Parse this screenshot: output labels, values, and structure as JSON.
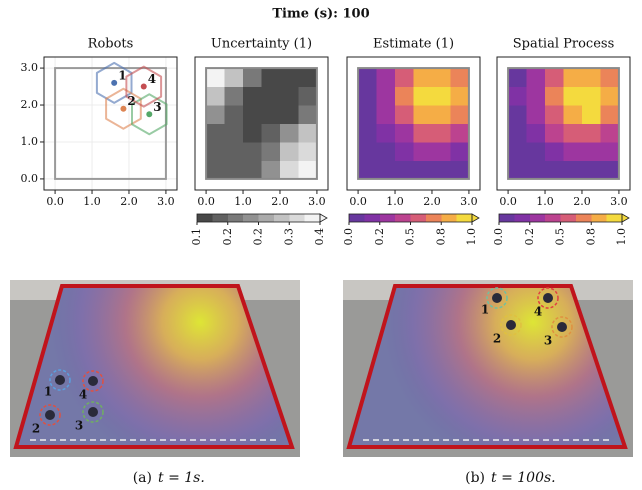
{
  "title": "Time (s): 100",
  "chart_data": [
    {
      "type": "scatter",
      "title": "Robots",
      "x": [
        1.6,
        1.85,
        2.55,
        2.4
      ],
      "y": [
        2.6,
        1.9,
        1.75,
        2.5
      ],
      "point_labels": [
        "1",
        "2",
        "3",
        "4"
      ],
      "colors": [
        "#4c72b0",
        "#dd8452",
        "#55a868",
        "#c44e52"
      ],
      "domain": [
        0,
        3
      ],
      "xlim": [
        -0.3,
        3.3
      ],
      "ylim": [
        -0.3,
        3.3
      ],
      "xticks": [
        {
          "value": 0,
          "label": "0.0"
        },
        {
          "value": 1,
          "label": "1.0"
        },
        {
          "value": 2,
          "label": "2.0"
        },
        {
          "value": 3,
          "label": "3.0"
        }
      ],
      "yticks": [
        {
          "value": 0,
          "label": "0.0"
        },
        {
          "value": 1,
          "label": "1.0"
        },
        {
          "value": 2,
          "label": "2.0"
        },
        {
          "value": 3,
          "label": "3.0"
        }
      ],
      "grid": true
    },
    {
      "type": "heatmap",
      "title": "Uncertainty (1)",
      "colormap": "gray",
      "x": [
        0.25,
        0.75,
        1.25,
        1.75,
        2.25,
        2.75
      ],
      "y": [
        0.25,
        0.75,
        1.25,
        1.75,
        2.25,
        2.75
      ],
      "values": [
        [
          0.15,
          0.15,
          0.17,
          0.25,
          0.33,
          0.38
        ],
        [
          0.15,
          0.14,
          0.14,
          0.2,
          0.3,
          0.36
        ],
        [
          0.17,
          0.14,
          0.13,
          0.14,
          0.22,
          0.3
        ],
        [
          0.22,
          0.15,
          0.13,
          0.12,
          0.13,
          0.2
        ],
        [
          0.3,
          0.2,
          0.13,
          0.12,
          0.12,
          0.14
        ],
        [
          0.38,
          0.3,
          0.18,
          0.13,
          0.12,
          0.13
        ]
      ],
      "xlim": [
        -0.3,
        3.3
      ],
      "ylim": [
        -0.3,
        3.3
      ],
      "xticks": [
        {
          "value": 0,
          "label": "0.0"
        },
        {
          "value": 1,
          "label": "1.0"
        },
        {
          "value": 2,
          "label": "2.0"
        },
        {
          "value": 3,
          "label": "3.0"
        }
      ],
      "clim": [
        0.1,
        0.4
      ],
      "cticks": [
        {
          "value": 0.1,
          "label": "0.1"
        },
        {
          "value": 0.175,
          "label": "0.2"
        },
        {
          "value": 0.25,
          "label": "0.2"
        },
        {
          "value": 0.325,
          "label": "0.3"
        },
        {
          "value": 0.4,
          "label": "0.4"
        }
      ]
    },
    {
      "type": "heatmap",
      "title": "Estimate (1)",
      "colormap": "plasma",
      "x": [
        0.25,
        0.75,
        1.25,
        1.75,
        2.25,
        2.75
      ],
      "y": [
        0.25,
        0.75,
        1.25,
        1.75,
        2.25,
        2.75
      ],
      "values": [
        [
          0.01,
          0.03,
          0.06,
          0.09,
          0.09,
          0.07
        ],
        [
          0.03,
          0.09,
          0.18,
          0.25,
          0.27,
          0.21
        ],
        [
          0.07,
          0.19,
          0.37,
          0.53,
          0.57,
          0.44
        ],
        [
          0.11,
          0.29,
          0.57,
          0.82,
          0.87,
          0.68
        ],
        [
          0.12,
          0.33,
          0.64,
          0.93,
          0.99,
          0.77
        ],
        [
          0.1,
          0.27,
          0.53,
          0.77,
          0.82,
          0.64
        ]
      ],
      "xlim": [
        -0.3,
        3.3
      ],
      "ylim": [
        -0.3,
        3.3
      ],
      "xticks": [
        {
          "value": 0,
          "label": "0.0"
        },
        {
          "value": 1,
          "label": "1.0"
        },
        {
          "value": 2,
          "label": "2.0"
        },
        {
          "value": 3,
          "label": "3.0"
        }
      ],
      "clim": [
        0,
        1
      ],
      "cticks": [
        {
          "value": 0,
          "label": "0.0"
        },
        {
          "value": 0.25,
          "label": "0.2"
        },
        {
          "value": 0.5,
          "label": "0.5"
        },
        {
          "value": 0.75,
          "label": "0.8"
        },
        {
          "value": 1,
          "label": "1.0"
        }
      ]
    },
    {
      "type": "heatmap",
      "title": "Spatial Process",
      "colormap": "plasma",
      "x": [
        0.25,
        0.75,
        1.25,
        1.75,
        2.25,
        2.75
      ],
      "y": [
        0.25,
        0.75,
        1.25,
        1.75,
        2.25,
        2.75
      ],
      "values": [
        [
          0.02,
          0.05,
          0.09,
          0.12,
          0.12,
          0.1
        ],
        [
          0.05,
          0.12,
          0.22,
          0.3,
          0.31,
          0.25
        ],
        [
          0.09,
          0.22,
          0.4,
          0.56,
          0.6,
          0.48
        ],
        [
          0.12,
          0.3,
          0.58,
          0.83,
          0.88,
          0.7
        ],
        [
          0.13,
          0.33,
          0.64,
          0.93,
          0.99,
          0.78
        ],
        [
          0.11,
          0.28,
          0.54,
          0.78,
          0.83,
          0.66
        ]
      ],
      "xlim": [
        -0.3,
        3.3
      ],
      "ylim": [
        -0.3,
        3.3
      ],
      "xticks": [
        {
          "value": 0,
          "label": "0.0"
        },
        {
          "value": 1,
          "label": "1.0"
        },
        {
          "value": 2,
          "label": "2.0"
        },
        {
          "value": 3,
          "label": "3.0"
        }
      ],
      "clim": [
        0,
        1
      ],
      "cticks": [
        {
          "value": 0,
          "label": "0.0"
        },
        {
          "value": 0.25,
          "label": "0.2"
        },
        {
          "value": 0.5,
          "label": "0.5"
        },
        {
          "value": 0.75,
          "label": "0.8"
        },
        {
          "value": 1,
          "label": "1.0"
        }
      ]
    }
  ],
  "photos": [
    {
      "caption_label": "(a)",
      "caption": "t = 1s.",
      "robot_labels": [
        "1",
        "2",
        "3",
        "4"
      ]
    },
    {
      "caption_label": "(b)",
      "caption": "t = 100s.",
      "robot_labels": [
        "1",
        "2",
        "3",
        "4"
      ]
    }
  ]
}
